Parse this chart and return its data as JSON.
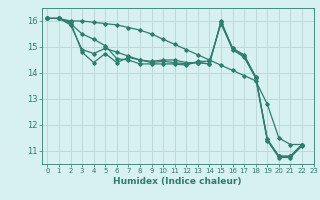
{
  "xlabel": "Humidex (Indice chaleur)",
  "background_color": "#d7f0f0",
  "grid_color": "#c0d8d8",
  "line_color": "#2e7d6e",
  "xlim": [
    -0.5,
    23
  ],
  "ylim": [
    10.5,
    16.5
  ],
  "yticks": [
    11,
    12,
    13,
    14,
    15,
    16
  ],
  "xtick_labels": [
    "0",
    "1",
    "2",
    "3",
    "4",
    "5",
    "6",
    "7",
    "8",
    "9",
    "10",
    "11",
    "12",
    "13",
    "14",
    "15",
    "16",
    "17",
    "18",
    "19",
    "20",
    "21",
    "22",
    "23"
  ],
  "series": [
    [
      16.1,
      16.1,
      15.95,
      14.8,
      14.4,
      14.75,
      14.4,
      14.6,
      14.5,
      14.45,
      14.5,
      14.5,
      14.4,
      14.4,
      14.35,
      16.0,
      14.95,
      14.7,
      13.85,
      11.45,
      10.8,
      10.8,
      11.25
    ],
    [
      16.1,
      16.1,
      15.9,
      15.5,
      15.3,
      15.05,
      14.55,
      14.5,
      14.35,
      14.35,
      14.35,
      14.35,
      14.3,
      14.45,
      14.45,
      15.9,
      14.9,
      14.6,
      13.8,
      11.4,
      10.75,
      10.75,
      11.2
    ],
    [
      16.1,
      16.1,
      15.85,
      14.9,
      14.75,
      14.95,
      14.8,
      14.65,
      14.5,
      14.4,
      14.45,
      14.4,
      14.35,
      14.4,
      14.35,
      15.95,
      14.95,
      14.65,
      13.85,
      11.45,
      10.8,
      10.8,
      11.25
    ],
    [
      16.1,
      16.1,
      16.0,
      16.0,
      15.95,
      15.9,
      15.85,
      15.75,
      15.65,
      15.5,
      15.3,
      15.1,
      14.9,
      14.7,
      14.5,
      14.3,
      14.1,
      13.9,
      13.7,
      12.8,
      11.5,
      11.25,
      11.25
    ]
  ]
}
